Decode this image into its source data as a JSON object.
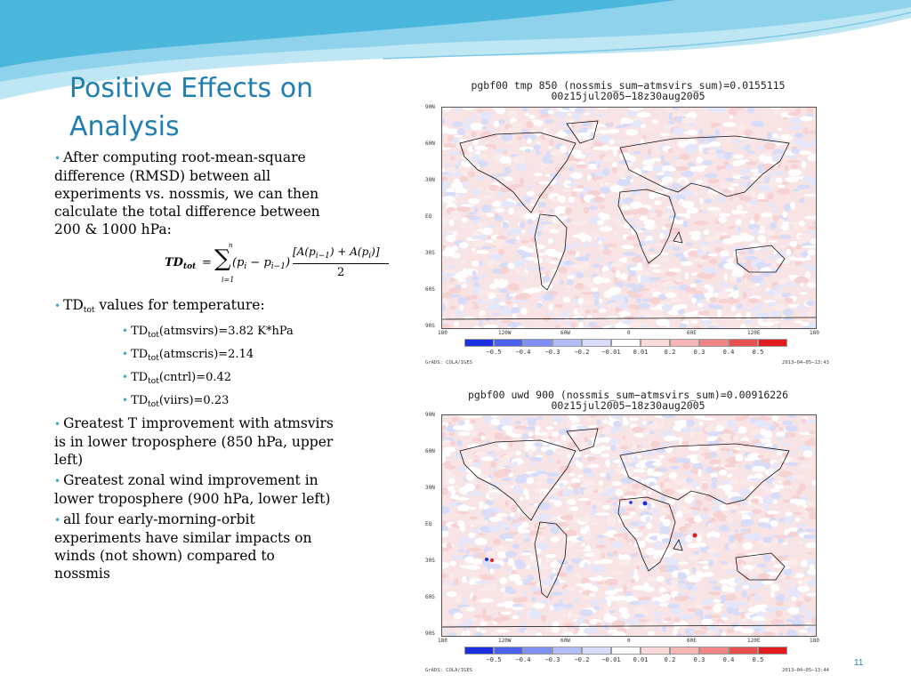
{
  "slide": {
    "title": "Positive Effects on Analysis",
    "number": "11",
    "colors": {
      "title": "#1f7fb0",
      "bullet": "#3ea7cf",
      "swoosh_light": "#bfe6f3",
      "swoosh_dark": "#4bb7dc"
    }
  },
  "bullets": {
    "intro": "After computing root-mean-square difference (RMSD) between all experiments vs. nossmis, we can then calculate the total difference between 200 & 1000 hPa:",
    "formula_lhs": "TD",
    "formula_lhs_sub": "tot",
    "formula_eq": "=",
    "formula_sum_top": "n",
    "formula_sum_bottom": "i=1",
    "formula_term": "(p",
    "formula_term_sub1": "i",
    "formula_minus": " − p",
    "formula_term_sub2": "i−1",
    "formula_close": ")",
    "formula_num": "[A(p",
    "formula_num_sub1": "i−1",
    "formula_num_mid": ") + A(p",
    "formula_num_sub2": "i",
    "formula_num_end": ")]",
    "formula_den": "2",
    "td_head": "TD",
    "td_head_sub": "tot",
    "td_head_rest": " values for temperature:",
    "subitems": [
      {
        "prefix": "TD",
        "sub": "tot",
        "text": "(atmsvirs)=3.82 K*hPa"
      },
      {
        "prefix": "TD",
        "sub": "tot",
        "text": "(atmscris)=2.14"
      },
      {
        "prefix": "TD",
        "sub": "tot",
        "text": "(cntrl)=0.42"
      },
      {
        "prefix": "TD",
        "sub": "tot",
        "text": "(viirs)=0.23"
      }
    ],
    "greatest_t": "Greatest T improvement with atmsvirs is in lower troposphere (850 hPa, upper left)",
    "greatest_wind": "Greatest zonal wind improvement in lower troposphere (900 hPa, lower left)",
    "four_orbit": "all four early-morning-orbit experiments have similar impacts on winds (not shown) compared to nossmis"
  },
  "maps": [
    {
      "title_line1": "pgbf00  tmp  850  (nossmis_sum−atmsvirs_sum)=0.0155115",
      "title_line2": "00z15jul2005−18z30aug2005",
      "credit": "GrADS: COLA/IGES",
      "stamp": "2013−04−05−13:43"
    },
    {
      "title_line1": "pgbf00  uwd  900  (nossmis_sum−atmsvirs_sum)=0.00916226",
      "title_line2": "00z15jul2005−18z30aug2005",
      "credit": "GrADS: COLA/IGES",
      "stamp": "2013−04−05−13:44"
    }
  ],
  "map_axes": {
    "lat_labels": [
      "90N",
      "60N",
      "30N",
      "EQ",
      "30S",
      "60S",
      "90S"
    ],
    "lon_labels": [
      "180",
      "120W",
      "60W",
      "0",
      "60E",
      "120E",
      "180"
    ]
  },
  "colorbar": {
    "labels": [
      "−0.5",
      "−0.4",
      "−0.3",
      "−0.2",
      "−0.01",
      "0.01",
      "0.2",
      "0.3",
      "0.4",
      "0.5"
    ],
    "colors": [
      "#1c2fe0",
      "#4a62ee",
      "#7f90f4",
      "#b3bdf8",
      "#d9dcfb",
      "#ffffff",
      "#fbd9d9",
      "#f7b7b7",
      "#ef8585",
      "#e85050",
      "#e01c1c"
    ]
  }
}
